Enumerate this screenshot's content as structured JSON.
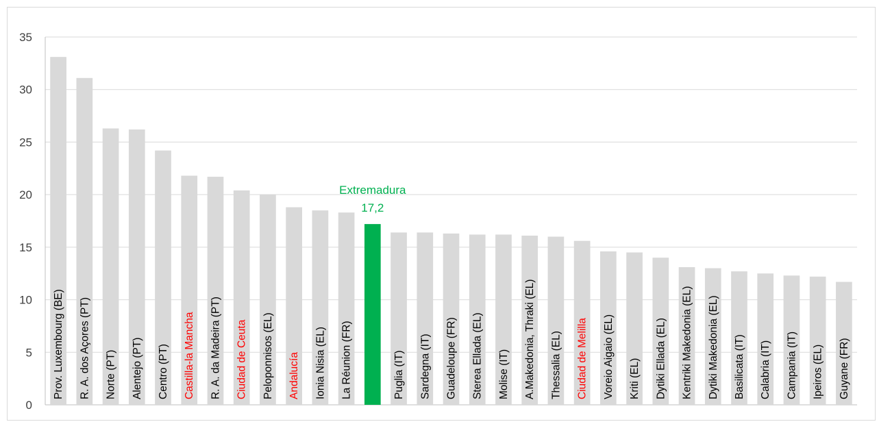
{
  "chart_data": {
    "type": "bar",
    "title": "",
    "xlabel": "",
    "ylabel": "",
    "ylim": [
      0,
      35
    ],
    "yticks": [
      0,
      5,
      10,
      15,
      20,
      25,
      30,
      35
    ],
    "grid": true,
    "legend": "none",
    "colors": {
      "default_bar": "#d9d9d9",
      "highlight_bar": "#00b050",
      "default_label": "#000000",
      "red_label": "#ff0000",
      "grid": "#d9d9d9",
      "axis": "#bfbfbf"
    },
    "categories": [
      "Prov. Luxembourg (BE)",
      "R. A. dos Açores  (PT)",
      "Norte (PT)",
      "Alentejo  (PT)",
      "Centro (PT)",
      "Castilla-la Mancha",
      "R. A. da Madeira  (PT)",
      "Ciudad de Ceuta",
      "Peloponnisos (EL)",
      "Andalucía",
      "Ionia Nisia (EL)",
      "La Réunion (FR)",
      "",
      "Puglia (IT)",
      "Sardegna (IT)",
      "Guadeloupe (FR)",
      "Sterea Ellada (EL)",
      "Molise (IT)",
      "A.Makedonia, Thraki (EL)",
      "Thessalia (EL)",
      "Ciudad de Melilla",
      "Voreio Aigaio (EL)",
      "Kriti (EL)",
      "Dytiki Ellada (EL)",
      "Kentriki Makedonia (EL)",
      "Dytiki Makedonia (EL)",
      "Basilicata (IT)",
      "Calabria (IT)",
      "Campania (IT)",
      "Ipeiros (EL)",
      "Guyane (FR)"
    ],
    "values": [
      33.1,
      31.1,
      26.3,
      26.2,
      24.2,
      21.8,
      21.7,
      20.4,
      20.0,
      18.8,
      18.5,
      18.3,
      17.2,
      16.4,
      16.4,
      16.3,
      16.2,
      16.2,
      16.1,
      16.0,
      15.6,
      14.6,
      14.5,
      14.0,
      13.1,
      13.0,
      12.7,
      12.5,
      12.3,
      12.2,
      11.7
    ],
    "highlight_index": 12,
    "red_label_indices": [
      5,
      7,
      9,
      20
    ],
    "annotations": [
      {
        "name": "Extremadura",
        "value": "17,2",
        "bar_index": 12
      }
    ]
  }
}
